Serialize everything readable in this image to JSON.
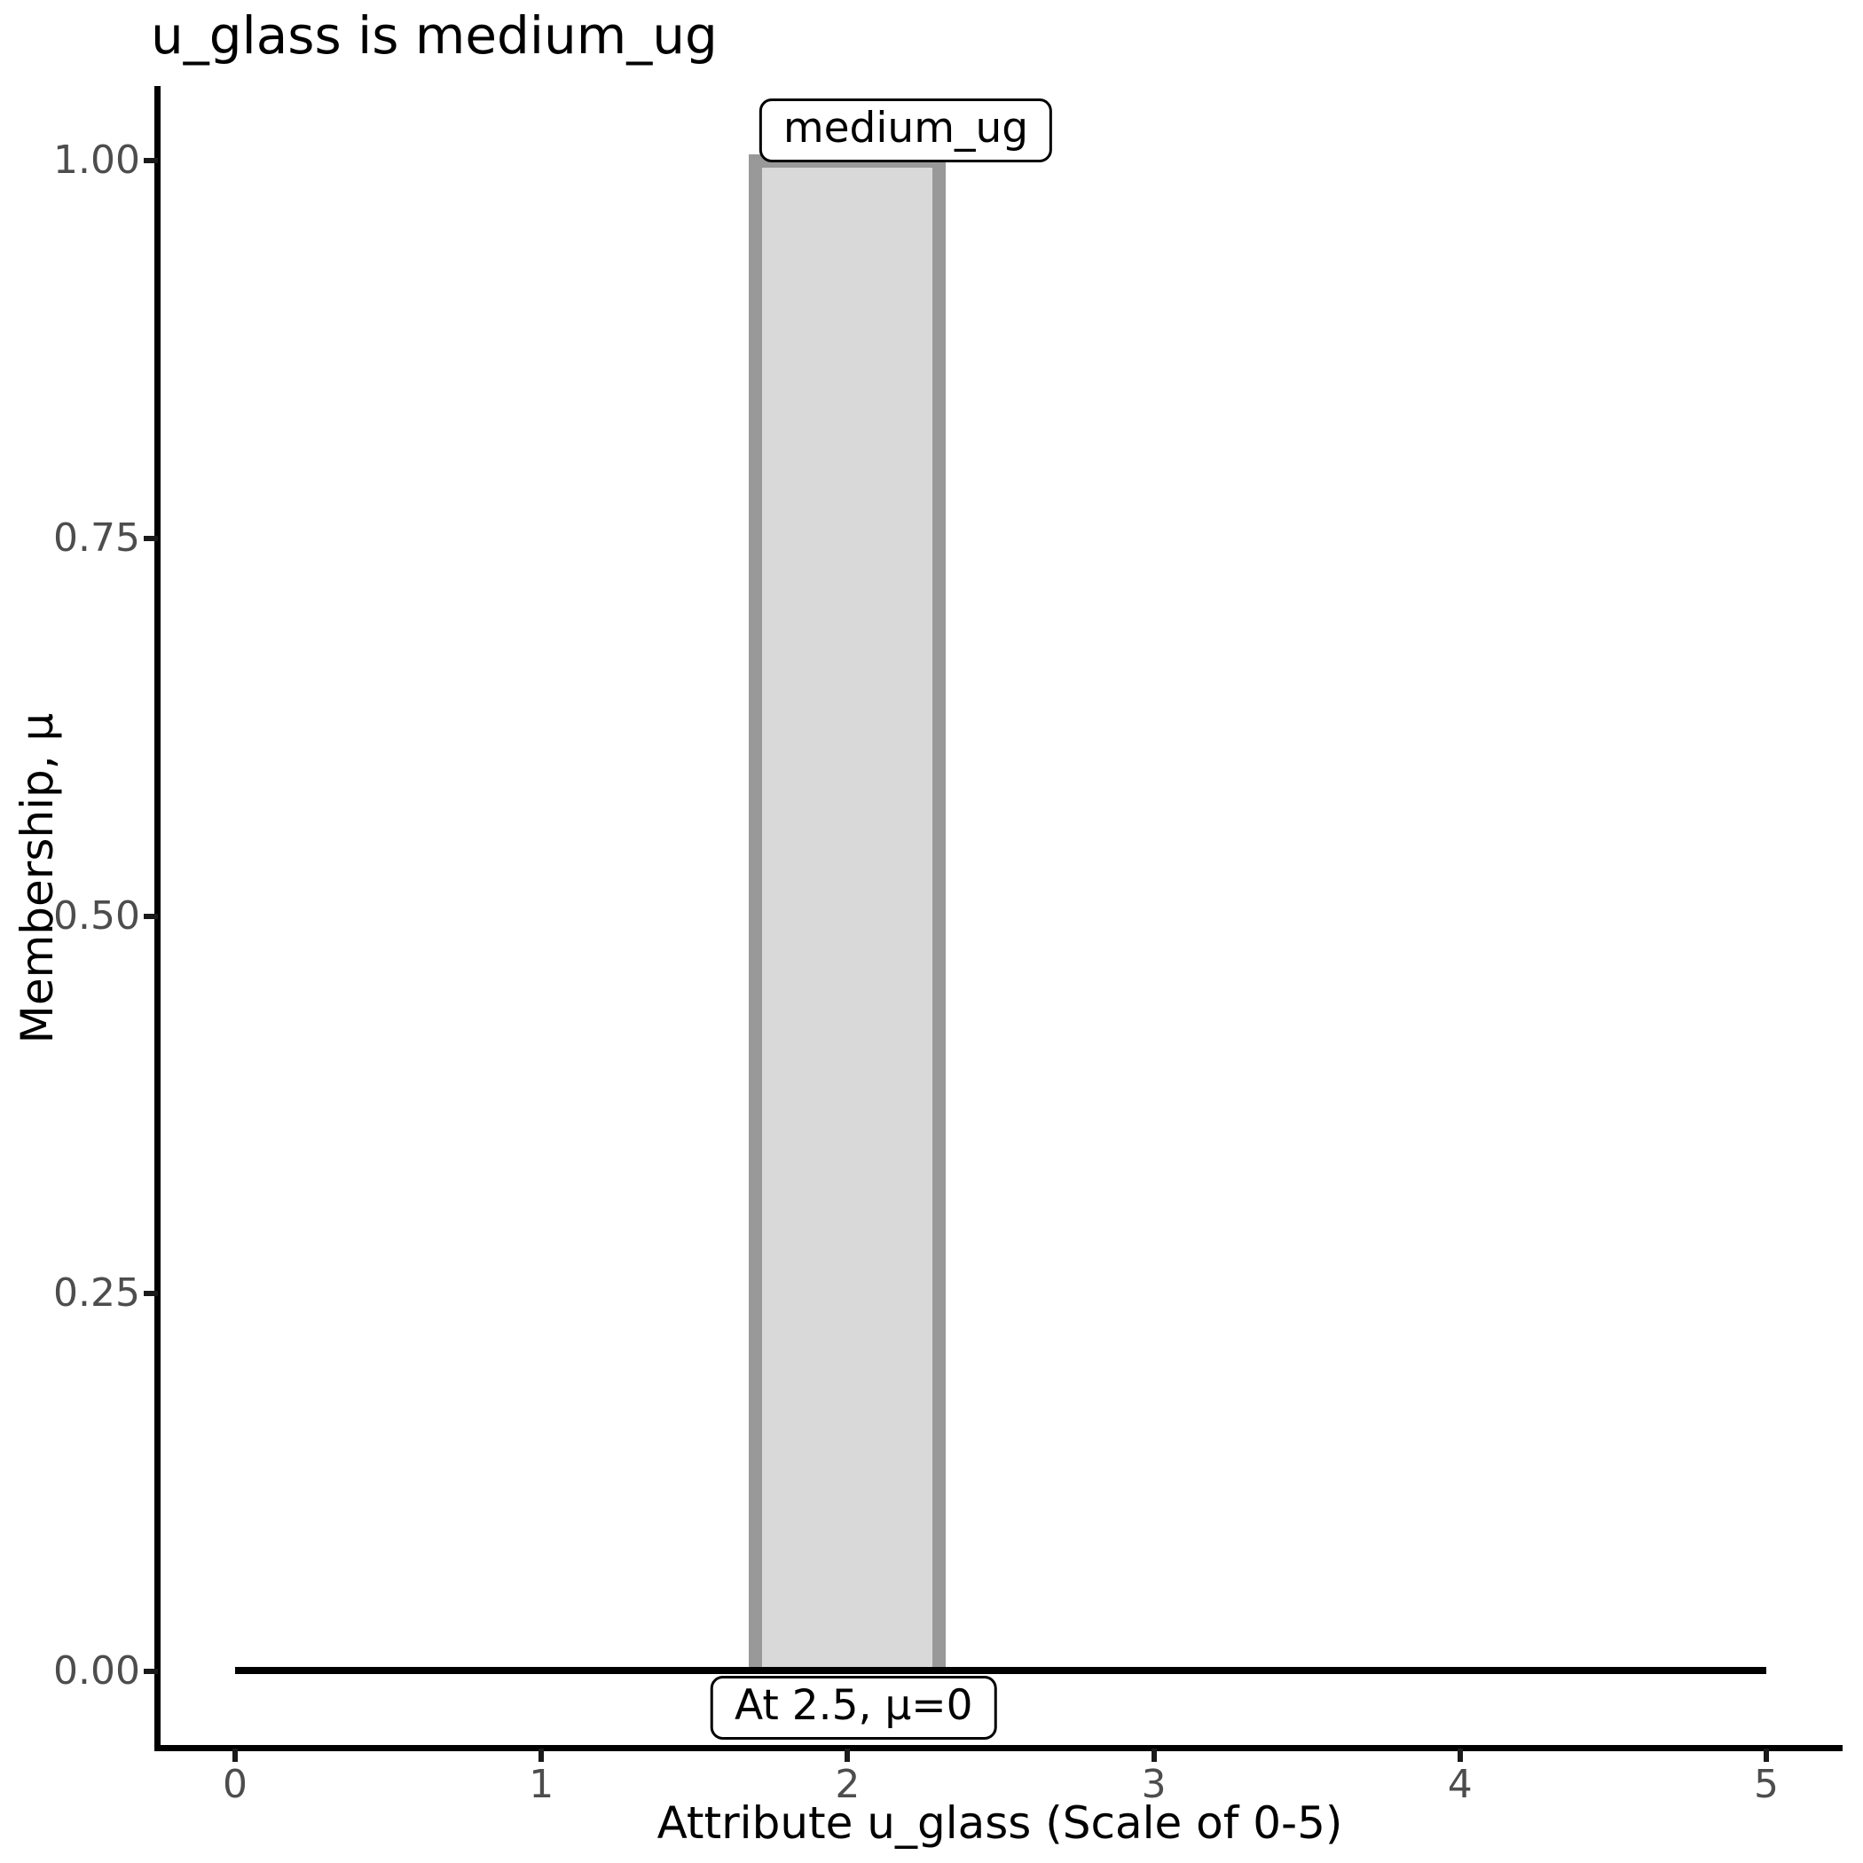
{
  "chart_data": {
    "type": "area",
    "title": "u_glass is medium_ug",
    "xlabel": "Attribute u_glass (Scale of 0-5)",
    "ylabel": "Membership, μ",
    "xlim": [
      0,
      5
    ],
    "ylim": [
      0,
      1
    ],
    "grid": "off",
    "legend": "none",
    "x_ticks": [
      0,
      1,
      2,
      3,
      4,
      5
    ],
    "y_ticks": [
      "0.00",
      "0.25",
      "0.50",
      "0.75",
      "1.00"
    ],
    "y_tick_values": [
      0,
      0.25,
      0.5,
      0.75,
      1.0
    ],
    "series": [
      {
        "name": "medium_ug membership polygon",
        "shape": "polygon",
        "points": [
          [
            1.7,
            0
          ],
          [
            1.7,
            1
          ],
          [
            2.3,
            1
          ],
          [
            2.3,
            0
          ]
        ],
        "fill": "#d9d9d9",
        "stroke": "#999999",
        "stroke_width": 15
      },
      {
        "name": "zero membership baseline",
        "shape": "line",
        "points": [
          [
            0,
            0
          ],
          [
            5,
            0
          ]
        ],
        "stroke": "#000000",
        "stroke_width": 8
      }
    ],
    "annotations": [
      {
        "text": "medium_ug",
        "x": 2.19,
        "y": 1.0,
        "position": "above-bar"
      },
      {
        "text": "At 2.5, μ=0",
        "x": 2.02,
        "y": 0.0,
        "position": "below-baseline"
      }
    ]
  },
  "colors": {
    "background": "#ffffff",
    "axis_line": "#000000",
    "tick_mark": "#1a1a1a",
    "tick_label": "#4d4d4d",
    "title_text": "#000000",
    "bar_fill": "#d9d9d9",
    "bar_stroke": "#999999",
    "annotation_border": "#000000",
    "annotation_bg": "#ffffff"
  }
}
